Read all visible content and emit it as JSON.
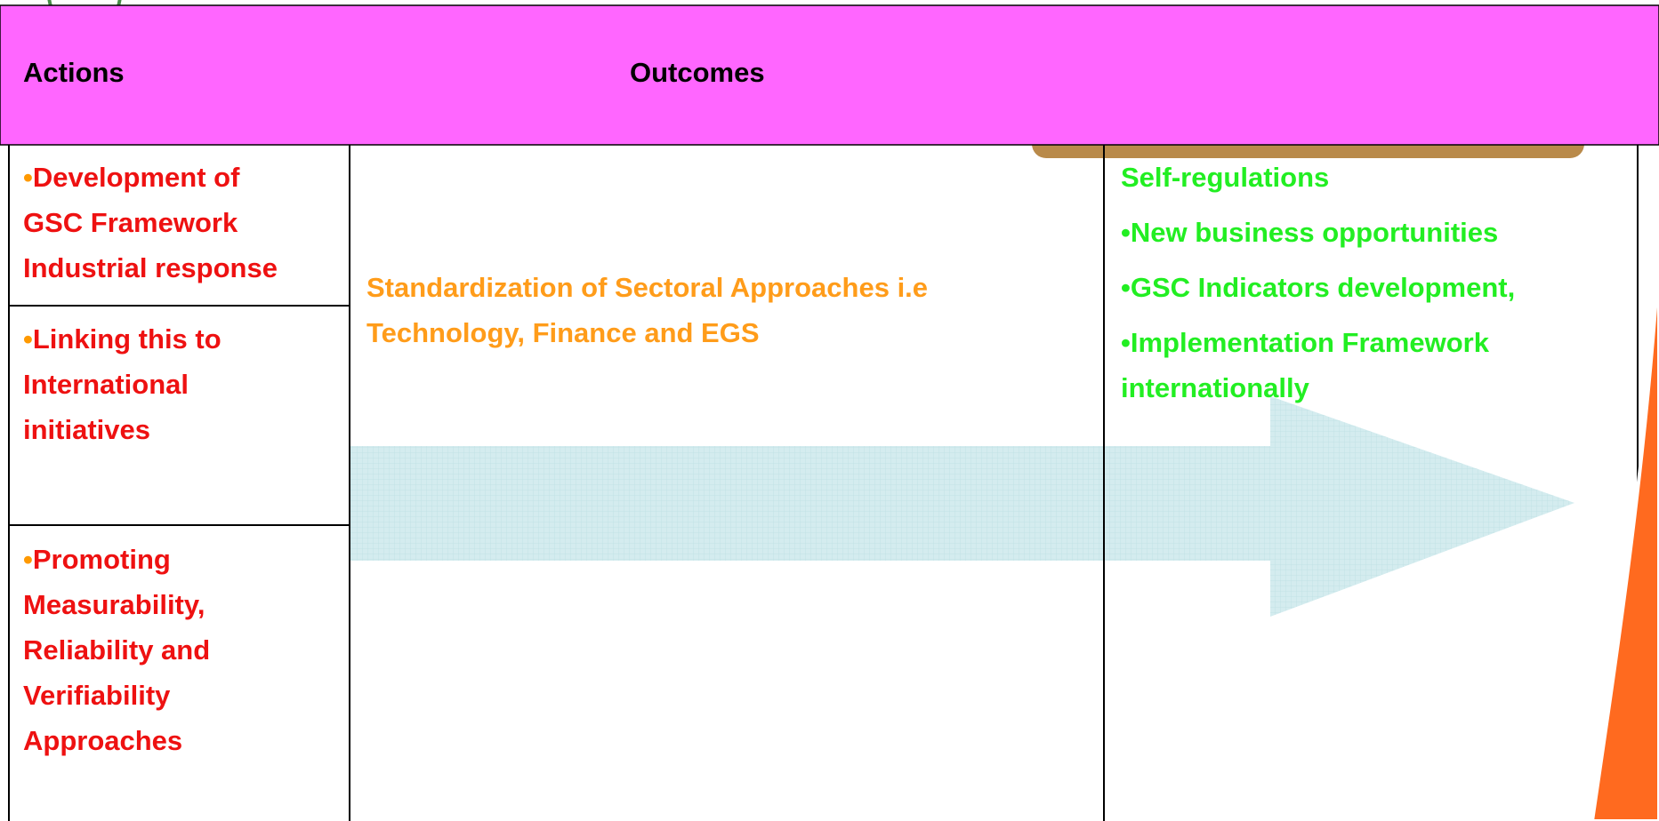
{
  "header": {
    "actions": "Actions",
    "outcomes": "Outcomes"
  },
  "actions": [
    {
      "lines": [
        "Development of",
        "GSC Framework",
        "Industrial response"
      ]
    },
    {
      "lines": [
        "Linking this to",
        "International",
        "initiatives"
      ]
    },
    {
      "lines": [
        "Promoting",
        "Measurability,",
        "Reliability and",
        "Verifiability",
        "Approaches"
      ]
    }
  ],
  "outcome": {
    "lines": [
      "Standardization of Sectoral Approaches i.e",
      "Technology, Finance and EGS"
    ]
  },
  "results": {
    "continued": "Self-regulations",
    "items": [
      {
        "lines": [
          "New business opportunities"
        ]
      },
      {
        "lines": [
          "GSC Indicators development,"
        ]
      },
      {
        "lines": [
          "Implementation Framework",
          "internationally"
        ]
      }
    ]
  }
}
